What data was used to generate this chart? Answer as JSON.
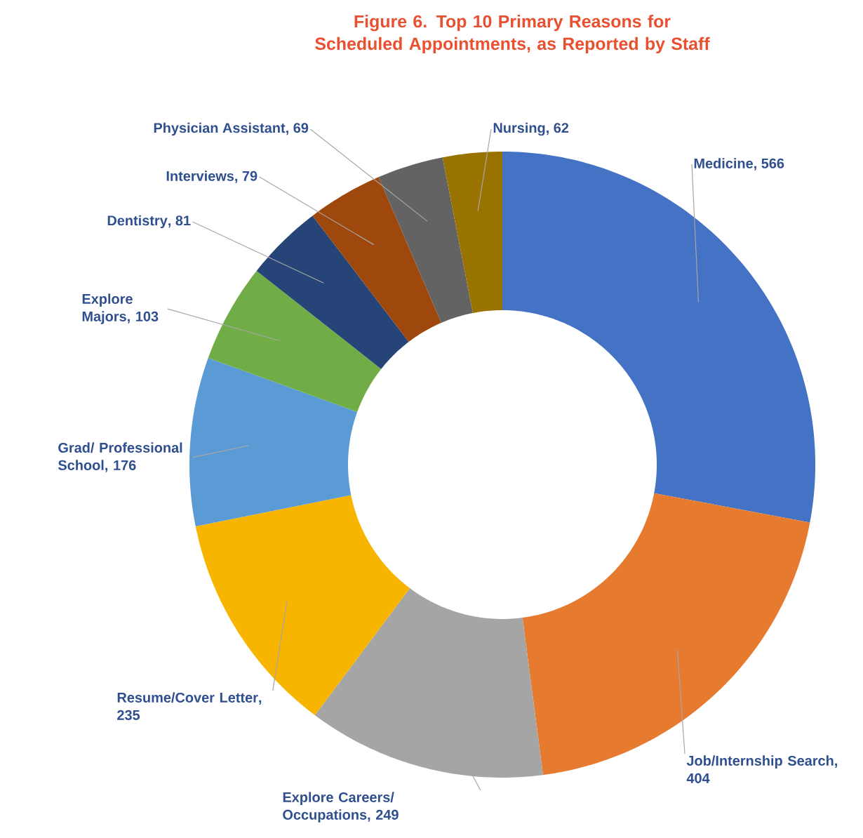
{
  "chart_data": {
    "type": "donut",
    "title": "Figure 6. Top 10 Primary Reasons for Scheduled Appointments, as Reported by Staff",
    "categories": [
      "Medicine",
      "Job/Internship Search",
      "Explore Careers/ Occupations",
      "Resume/Cover Letter",
      "Grad/ Professional School",
      "Explore Majors",
      "Dentistry",
      "Interviews",
      "Physician Assistant",
      "Nursing"
    ],
    "values": [
      566,
      404,
      249,
      235,
      176,
      103,
      81,
      79,
      69,
      62
    ],
    "colors": [
      "#4472c4",
      "#e67a2e",
      "#a5a5a5",
      "#f7b500",
      "#5b9bd5",
      "#70ad47",
      "#264478",
      "#9e480e",
      "#636363",
      "#997300"
    ],
    "value_labels": [
      ", 566",
      ", 404",
      ", 249",
      ", 235",
      ", 176",
      ", 103",
      ", 81",
      ", 79",
      ", 69",
      ", 62"
    ]
  }
}
